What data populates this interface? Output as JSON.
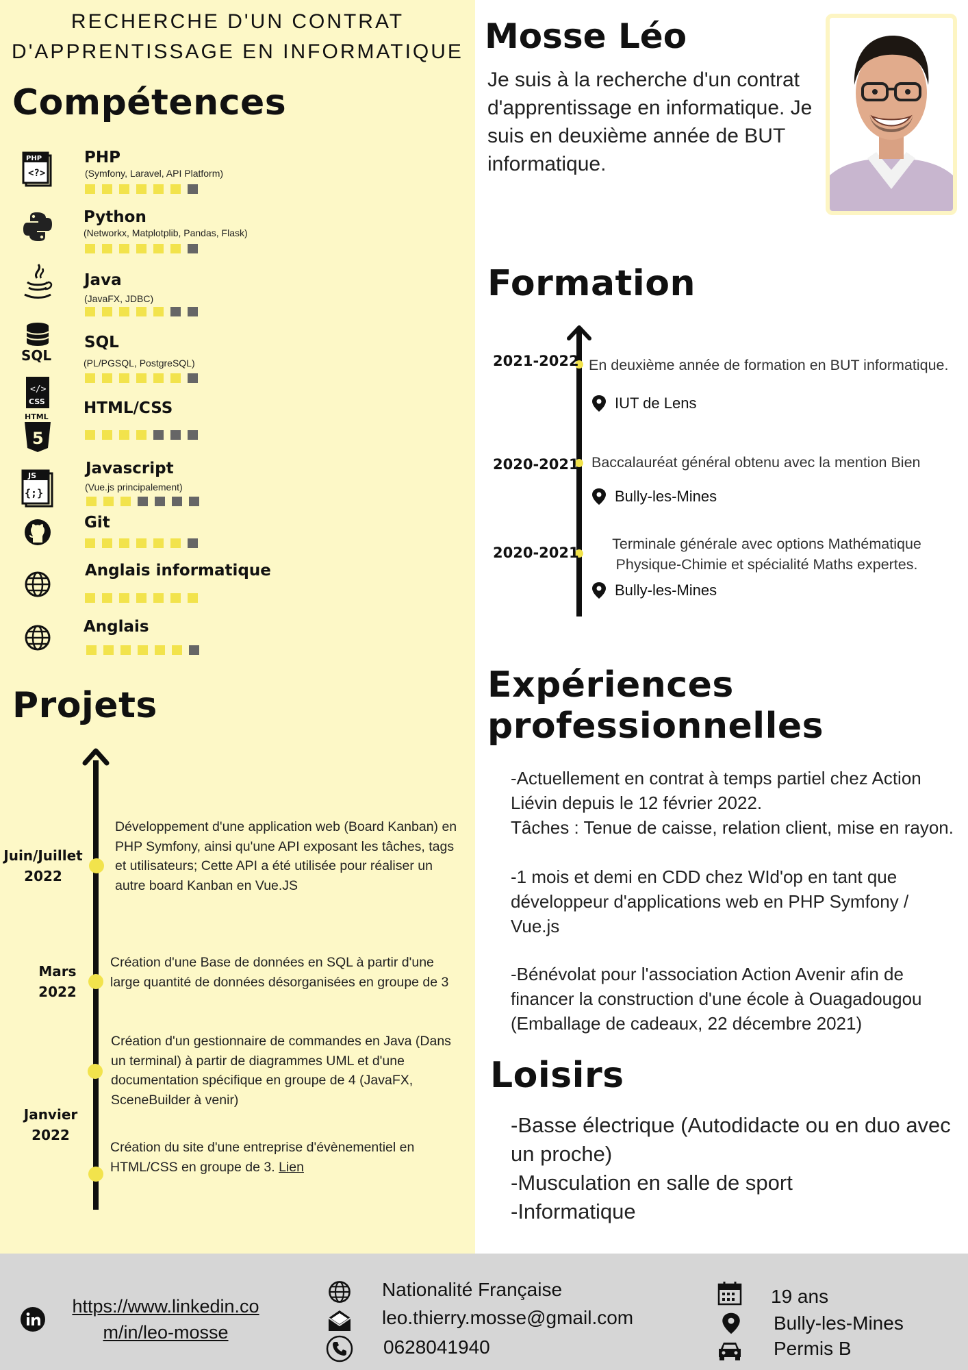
{
  "headline": [
    "RECHERCHE D'UN CONTRAT",
    "D'APPRENTISSAGE EN INFORMATIQUE"
  ],
  "skills_section": {
    "title": "Compétences",
    "items": [
      {
        "name": "PHP",
        "detail": "(Symfony, Laravel, API Platform)",
        "level": 6,
        "max": 7,
        "icon": "php-file-icon"
      },
      {
        "name": "Python",
        "detail": "(Networkx, Matplotplib, Pandas, Flask)",
        "level": 6,
        "max": 7,
        "icon": "python-icon"
      },
      {
        "name": "Java",
        "detail": "(JavaFX, JDBC)",
        "level": 5,
        "max": 7,
        "icon": "java-icon"
      },
      {
        "name": "SQL",
        "detail": "(PL/PGSQL, PostgreSQL)",
        "level": 6,
        "max": 7,
        "icon": "sql-database-icon"
      },
      {
        "name": "HTML/CSS",
        "detail": "",
        "level": 4,
        "max": 7,
        "icon": "html-css-icon"
      },
      {
        "name": "Javascript",
        "detail": "(Vue.js principalement)",
        "level": 3,
        "max": 7,
        "icon": "javascript-file-icon"
      },
      {
        "name": "Git",
        "detail": "",
        "level": 6,
        "max": 7,
        "icon": "github-icon"
      },
      {
        "name": "Anglais informatique",
        "detail": "",
        "level": 7,
        "max": 7,
        "icon": "globe-icon"
      },
      {
        "name": "Anglais",
        "detail": "",
        "level": 6,
        "max": 7,
        "icon": "globe-icon"
      }
    ]
  },
  "projects": {
    "title": "Projets",
    "dates": [
      [
        "Juin/Juillet",
        "2022"
      ],
      [
        "Mars",
        "2022"
      ],
      [
        "Janvier",
        "2022"
      ]
    ],
    "items": [
      {
        "text": "Développement d'une application web (Board Kanban) en PHP Symfony, ainsi qu'une API exposant les tâches, tags et utilisateurs; Cette API a été utilisée pour réaliser un autre board Kanban en Vue.JS"
      },
      {
        "text": "Création d'une Base de données en SQL à partir d'une large quantité de données désorganisées en groupe de 3"
      },
      {
        "text": "Création d'un gestionnaire de commandes en Java (Dans un terminal) à partir de diagrammes UML et d'une documentation spécifique en groupe de 4 (JavaFX, SceneBuilder à venir)"
      },
      {
        "text": "Création du site d'une entreprise d'évènementiel en HTML/CSS en groupe de 3.",
        "link": "Lien"
      }
    ]
  },
  "profile": {
    "name": "Mosse Léo",
    "intro": "Je suis à la recherche d'un contrat d'apprentissage en informatique. Je suis en deuxième année de BUT informatique."
  },
  "education": {
    "title": "Formation",
    "items": [
      {
        "date": "2021-2022",
        "lines": [
          "En deuxième année de formation en BUT informatique."
        ],
        "place": "IUT de Lens"
      },
      {
        "date": "2020-2021",
        "lines": [
          "Baccalauréat général obtenu avec la mention Bien"
        ],
        "place": "Bully-les-Mines"
      },
      {
        "date": "2020-2021",
        "lines": [
          "Terminale générale avec options Mathématique",
          "Physique-Chimie et spécialité Maths expertes."
        ],
        "place": "Bully-les-Mines"
      }
    ]
  },
  "experience": {
    "title_lines": [
      "Expériences",
      "professionnelles"
    ],
    "blocks": [
      [
        "-Actuellement en contrat à temps partiel chez Action",
        "Liévin depuis le 12 février 2022.",
        "Tâches : Tenue de caisse, relation client, mise en rayon."
      ],
      [
        "-1 mois et demi en CDD chez WId'op en tant que",
        "développeur d'applications web en PHP Symfony /",
        "Vue.js"
      ],
      [
        "-Bénévolat pour l'association Action Avenir afin de",
        "financer la construction d'une école à Ouagadougou",
        "(Emballage de cadeaux, 22 décembre 2021)"
      ]
    ]
  },
  "leisure": {
    "title": "Loisirs",
    "lines": [
      "-Basse électrique (Autodidacte ou en duo avec",
      "un proche)",
      "-Musculation en salle de sport",
      "-Informatique"
    ]
  },
  "footer": {
    "linkedin": [
      "https://www.linkedin.co",
      "m/in/leo-mosse"
    ],
    "nationality": "Nationalité Française",
    "email": "leo.thierry.mosse@gmail.com",
    "phone": "0628041940",
    "age": "19 ans",
    "city": "Bully-les-Mines",
    "license": "Permis B"
  },
  "colors": {
    "left_bg": "#fdf8c7",
    "accent": "#f2e34c",
    "footer_bg": "#d6d6d6",
    "dot_empty": "#666666"
  }
}
